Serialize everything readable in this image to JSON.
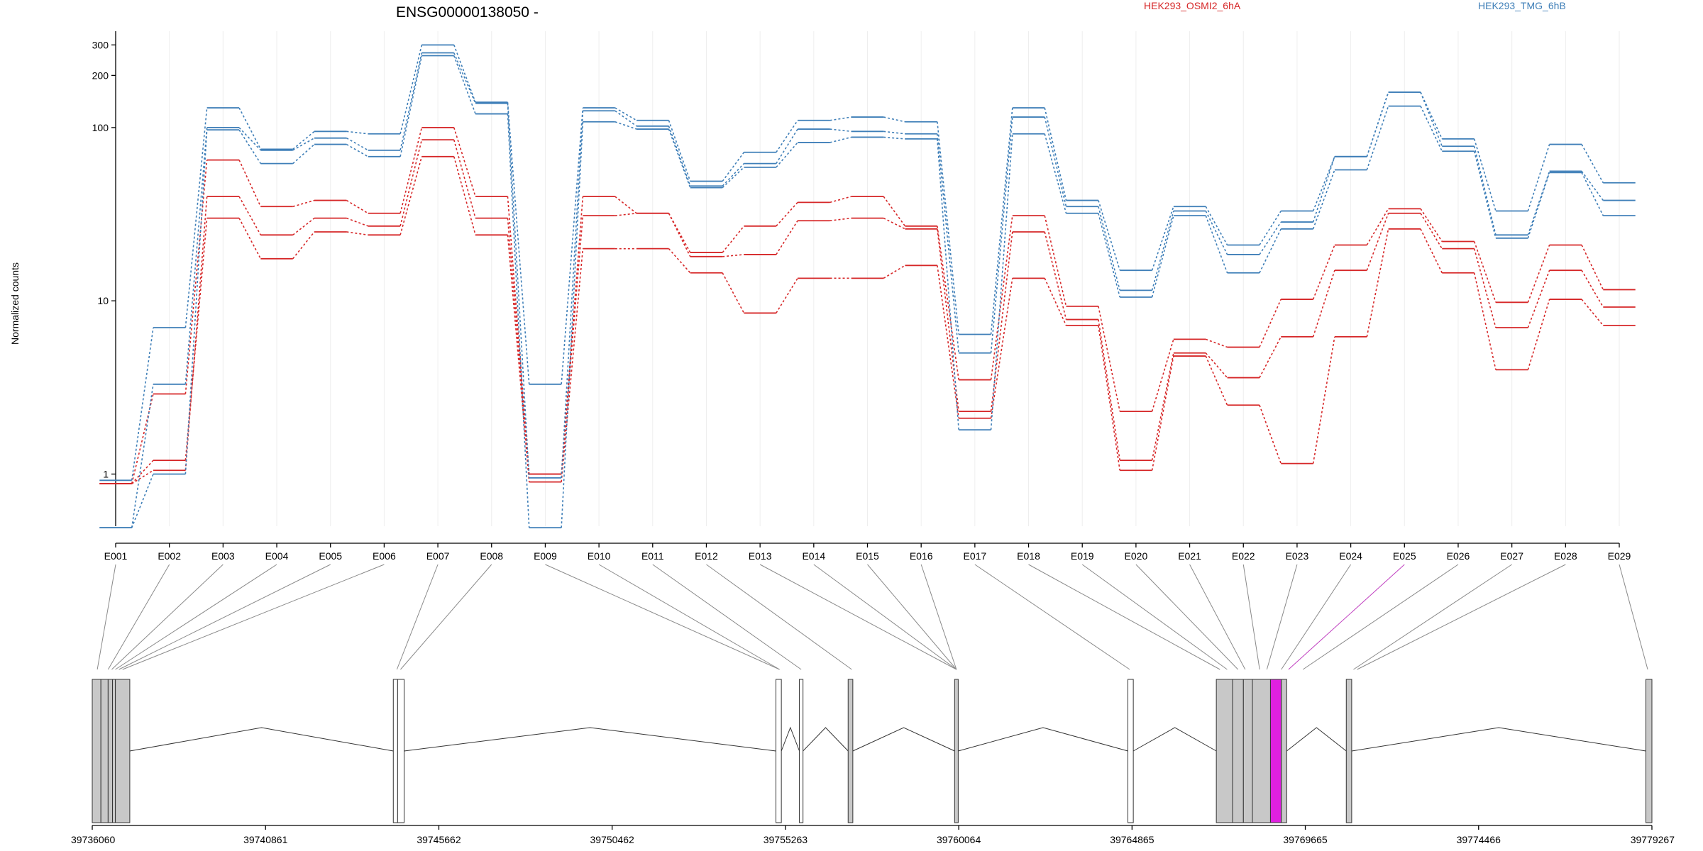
{
  "title": "ENSG00000138050 -",
  "legend": [
    {
      "name": "HEK293_OSMI2_6hA",
      "color": "#d62728"
    },
    {
      "name": "HEK293_TMG_6hB",
      "color": "#3f7fb8"
    }
  ],
  "chart_data": {
    "type": "line",
    "scale": "log",
    "ylabel": "Normalized counts",
    "ylim": [
      0.5,
      360
    ],
    "yticks": [
      {
        "v": 1,
        "label": "1"
      },
      {
        "v": 10,
        "label": "10"
      },
      {
        "v": 100,
        "label": "100"
      },
      {
        "v": 200,
        "label": "200"
      },
      {
        "v": 300,
        "label": "300"
      }
    ],
    "categories": [
      "E001",
      "E002",
      "E003",
      "E004",
      "E005",
      "E006",
      "E007",
      "E008",
      "E009",
      "E010",
      "E011",
      "E012",
      "E013",
      "E014",
      "E015",
      "E016",
      "E017",
      "E018",
      "E019",
      "E020",
      "E021",
      "E022",
      "E023",
      "E024",
      "E025",
      "E026",
      "E027",
      "E028",
      "E029"
    ],
    "series": [
      {
        "group": 1,
        "values": [
          0.88,
          2.9,
          65,
          35,
          38,
          32,
          100,
          40,
          1.0,
          40,
          32,
          19,
          27,
          37,
          40,
          27,
          3.5,
          31,
          9.3,
          2.3,
          6.0,
          5.4,
          10.2,
          21,
          34,
          22,
          9.8,
          21,
          11.6
        ]
      },
      {
        "group": 1,
        "values": [
          0.88,
          1.05,
          40,
          24,
          30,
          27,
          85,
          30,
          1.0,
          31,
          32,
          18,
          18.5,
          29,
          30,
          26,
          2.3,
          25,
          7.8,
          1.2,
          5.0,
          3.6,
          6.2,
          15,
          32,
          20,
          7.0,
          15,
          9.2
        ]
      },
      {
        "group": 1,
        "values": [
          0.88,
          1.2,
          30,
          17.5,
          25,
          24,
          68,
          24,
          0.9,
          20,
          20,
          14.5,
          8.5,
          13.5,
          13.5,
          16,
          2.1,
          13.5,
          7.2,
          1.05,
          4.8,
          2.5,
          1.15,
          6.2,
          26,
          14.5,
          4.0,
          10.2,
          7.2
        ]
      },
      {
        "group": 2,
        "values": [
          0.92,
          7,
          130,
          75,
          95,
          92,
          300,
          140,
          3.3,
          130,
          110,
          49,
          72,
          110,
          115,
          108,
          6.4,
          130,
          38,
          15,
          35,
          21,
          33,
          68,
          160,
          86,
          33,
          80,
          48
        ]
      },
      {
        "group": 2,
        "values": [
          0.49,
          3.3,
          100,
          74,
          87,
          74,
          270,
          138,
          0.95,
          125,
          102,
          46,
          62,
          98,
          95,
          92,
          5.0,
          115,
          35,
          11.5,
          33,
          18.5,
          28.5,
          68,
          160,
          78,
          24,
          56,
          38
        ]
      },
      {
        "group": 2,
        "values": [
          0.49,
          1.0,
          97,
          62,
          80,
          68,
          260,
          120,
          0.49,
          108,
          98,
          45,
          59,
          82,
          88,
          86,
          1.8,
          92,
          32,
          10.5,
          31,
          14.5,
          26,
          57,
          133,
          73,
          23,
          55,
          31
        ]
      }
    ],
    "genomic_axis": {
      "start": 39736060,
      "end": 39779267,
      "ticks": [
        39736060,
        39740861,
        39745662,
        39750462,
        39755263,
        39760064,
        39764865,
        39769665,
        39774466,
        39779267
      ],
      "exon_anchors": [
        39736200,
        39736500,
        39736600,
        39736700,
        39736800,
        39736900,
        39744500,
        39744600,
        39755100,
        39755100,
        39755700,
        39757100,
        39760000,
        39760000,
        39760000,
        39760000,
        39764800,
        39767300,
        39767500,
        39767800,
        39768000,
        39768400,
        39768600,
        39769000,
        39769200,
        39769600,
        39771000,
        39771100,
        39779150
      ],
      "highlight_exon": 24,
      "exons": [
        {
          "s": 39736060,
          "e": 39736300,
          "fill": "#c8c8c8"
        },
        {
          "s": 39736300,
          "e": 39736500,
          "fill": "#c8c8c8"
        },
        {
          "s": 39736500,
          "e": 39736620,
          "fill": "#c8c8c8"
        },
        {
          "s": 39736620,
          "e": 39736700,
          "fill": "#c8c8c8"
        },
        {
          "s": 39736700,
          "e": 39737100,
          "fill": "#c8c8c8"
        },
        {
          "s": 39744400,
          "e": 39744520,
          "fill": "#ffffff"
        },
        {
          "s": 39744520,
          "e": 39744700,
          "fill": "#ffffff"
        },
        {
          "s": 39755000,
          "e": 39755150,
          "fill": "#ffffff"
        },
        {
          "s": 39755650,
          "e": 39755750,
          "fill": "#ffffff"
        },
        {
          "s": 39757000,
          "e": 39757130,
          "fill": "#c8c8c8"
        },
        {
          "s": 39759950,
          "e": 39760050,
          "fill": "#c8c8c8"
        },
        {
          "s": 39764750,
          "e": 39764900,
          "fill": "#ffffff"
        },
        {
          "s": 39767200,
          "e": 39767650,
          "fill": "#c8c8c8"
        },
        {
          "s": 39767650,
          "e": 39767950,
          "fill": "#c8c8c8"
        },
        {
          "s": 39767950,
          "e": 39768200,
          "fill": "#c8c8c8"
        },
        {
          "s": 39768200,
          "e": 39768700,
          "fill": "#c8c8c8"
        },
        {
          "s": 39768700,
          "e": 39769000,
          "fill": "#e020e0"
        },
        {
          "s": 39769000,
          "e": 39769150,
          "fill": "#c8c8c8"
        },
        {
          "s": 39770800,
          "e": 39770950,
          "fill": "#c8c8c8"
        },
        {
          "s": 39779100,
          "e": 39779267,
          "fill": "#c8c8c8"
        }
      ],
      "introns": [
        [
          39737100,
          39744400
        ],
        [
          39744700,
          39755000
        ],
        [
          39755150,
          39755650
        ],
        [
          39755750,
          39757000
        ],
        [
          39757130,
          39759950
        ],
        [
          39760050,
          39764750
        ],
        [
          39764900,
          39767200
        ],
        [
          39769150,
          39770800
        ],
        [
          39770950,
          39779100
        ]
      ]
    }
  }
}
